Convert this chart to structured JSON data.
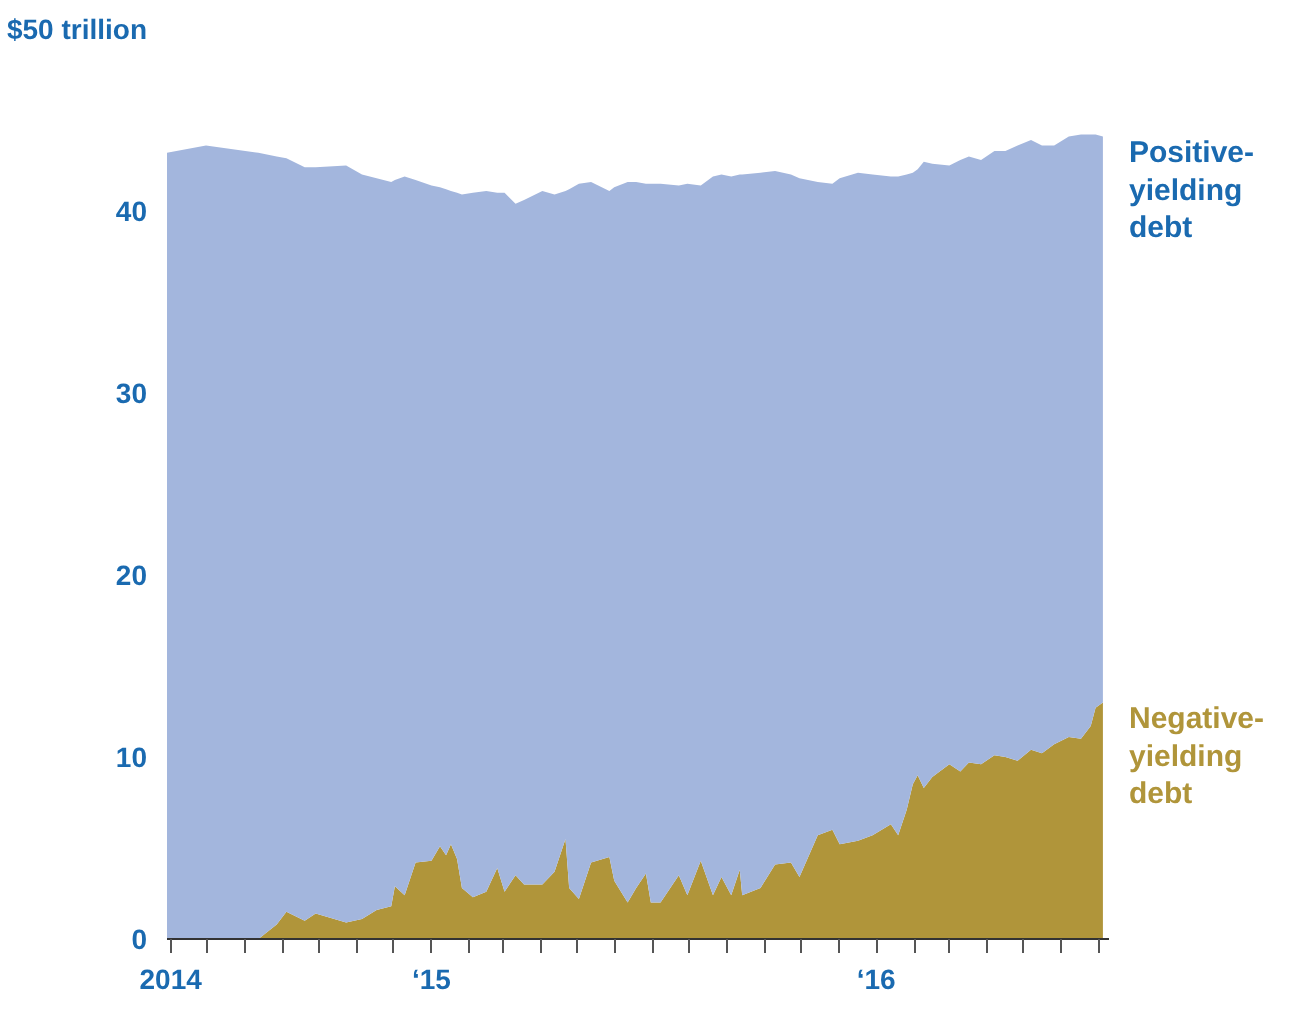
{
  "chart_data": {
    "type": "area",
    "stacked": true,
    "grid": false,
    "x": [
      "2014-05-29",
      "2014-06-30",
      "2014-08-12",
      "2014-08-27",
      "2014-09-04",
      "2014-09-19",
      "2014-09-28",
      "2014-10-23",
      "2014-11-05",
      "2014-11-17",
      "2014-11-29",
      "2014-12-02",
      "2014-12-10",
      "2014-12-19",
      "2015-01-01",
      "2015-01-08",
      "2015-01-13",
      "2015-01-17",
      "2015-01-22",
      "2015-01-26",
      "2015-02-04",
      "2015-02-15",
      "2015-02-24",
      "2015-03-02",
      "2015-03-11",
      "2015-03-18",
      "2015-04-02",
      "2015-04-12",
      "2015-04-21",
      "2015-04-24",
      "2015-05-02",
      "2015-05-12",
      "2015-05-27",
      "2015-05-31",
      "2015-06-11",
      "2015-06-18",
      "2015-06-26",
      "2015-06-30",
      "2015-07-08",
      "2015-07-23",
      "2015-07-30",
      "2015-08-10",
      "2015-08-20",
      "2015-08-27",
      "2015-09-04",
      "2015-09-11",
      "2015-09-13",
      "2015-09-28",
      "2015-10-10",
      "2015-10-23",
      "2015-10-30",
      "2015-11-14",
      "2015-11-26",
      "2015-12-02",
      "2015-12-17",
      "2015-12-29",
      "2016-01-13",
      "2016-01-19",
      "2016-01-26",
      "2016-01-31",
      "2016-02-04",
      "2016-02-09",
      "2016-02-16",
      "2016-03-01",
      "2016-03-10",
      "2016-03-17",
      "2016-03-27",
      "2016-04-07",
      "2016-04-16",
      "2016-04-26",
      "2016-05-07",
      "2016-05-16",
      "2016-05-26",
      "2016-06-07",
      "2016-06-17",
      "2016-06-25",
      "2016-06-29",
      "2016-07-05"
    ],
    "series": [
      {
        "name": "Negative-\nyielding\ndebt",
        "color": "#b0953a",
        "values": [
          0,
          0,
          0,
          0.8,
          1.5,
          1.0,
          1.4,
          0.9,
          1.1,
          1.6,
          1.8,
          2.9,
          2.4,
          4.2,
          4.3,
          5.1,
          4.6,
          5.2,
          4.4,
          2.8,
          2.3,
          2.6,
          3.9,
          2.6,
          3.5,
          3.0,
          3.0,
          3.7,
          5.5,
          2.8,
          2.2,
          4.2,
          4.5,
          3.2,
          2.0,
          2.8,
          3.6,
          2.0,
          2.0,
          3.5,
          2.4,
          4.3,
          2.4,
          3.4,
          2.4,
          3.8,
          2.4,
          2.8,
          4.1,
          4.2,
          3.4,
          5.7,
          6.0,
          5.2,
          5.4,
          5.7,
          6.3,
          5.7,
          7.1,
          8.5,
          9.0,
          8.3,
          8.9,
          9.6,
          9.2,
          9.7,
          9.6,
          10.1,
          10.0,
          9.8,
          10.4,
          10.2,
          10.7,
          11.1,
          11.0,
          11.7,
          12.7,
          13.0
        ]
      },
      {
        "name": "Positive-\nyielding\ndebt",
        "color": "#a3b6dd",
        "values": [
          43.2,
          43.6,
          43.2,
          42.2,
          41.4,
          41.4,
          41.0,
          41.6,
          40.9,
          40.2,
          39.8,
          38.8,
          39.5,
          37.5,
          37.1,
          36.2,
          36.6,
          35.9,
          36.6,
          38.1,
          38.7,
          38.5,
          37.1,
          38.4,
          36.9,
          37.6,
          38.1,
          37.2,
          35.6,
          38.4,
          39.3,
          37.4,
          36.6,
          38.1,
          39.6,
          38.8,
          37.9,
          39.5,
          39.5,
          37.9,
          39.1,
          37.1,
          39.5,
          38.6,
          39.5,
          38.2,
          39.6,
          39.3,
          38.1,
          37.8,
          38.4,
          35.9,
          35.5,
          36.6,
          36.7,
          36.3,
          35.6,
          36.2,
          34.9,
          33.6,
          33.3,
          34.4,
          33.7,
          32.9,
          33.6,
          33.3,
          33.2,
          33.2,
          33.3,
          33.8,
          33.5,
          33.4,
          32.9,
          33.0,
          33.2,
          32.5,
          31.5,
          31.1
        ]
      }
    ],
    "xlim": [
      "2014-05-29",
      "2016-07-10"
    ],
    "xticks": [
      {
        "value": "2014-06-01",
        "label": "2014"
      },
      {
        "value": "2014-07-01",
        "label": null
      },
      {
        "value": "2014-08-01",
        "label": null
      },
      {
        "value": "2014-09-01",
        "label": null
      },
      {
        "value": "2014-10-01",
        "label": null
      },
      {
        "value": "2014-11-01",
        "label": null
      },
      {
        "value": "2014-12-01",
        "label": null
      },
      {
        "value": "2015-01-01",
        "label": "‘15"
      },
      {
        "value": "2015-02-01",
        "label": null
      },
      {
        "value": "2015-03-01",
        "label": null
      },
      {
        "value": "2015-04-01",
        "label": null
      },
      {
        "value": "2015-05-01",
        "label": null
      },
      {
        "value": "2015-06-01",
        "label": null
      },
      {
        "value": "2015-07-01",
        "label": null
      },
      {
        "value": "2015-08-01",
        "label": null
      },
      {
        "value": "2015-09-01",
        "label": null
      },
      {
        "value": "2015-10-01",
        "label": null
      },
      {
        "value": "2015-11-01",
        "label": null
      },
      {
        "value": "2015-12-01",
        "label": null
      },
      {
        "value": "2016-01-01",
        "label": "‘16"
      },
      {
        "value": "2016-02-01",
        "label": null
      },
      {
        "value": "2016-03-01",
        "label": null
      },
      {
        "value": "2016-04-01",
        "label": null
      },
      {
        "value": "2016-05-01",
        "label": null
      },
      {
        "value": "2016-06-01",
        "label": null
      },
      {
        "value": "2016-07-01",
        "label": null
      }
    ],
    "ylim": [
      0,
      50
    ],
    "yticks": [
      0,
      10,
      20,
      30,
      40,
      {
        "value": 50,
        "label": "$50 trillion"
      }
    ]
  }
}
